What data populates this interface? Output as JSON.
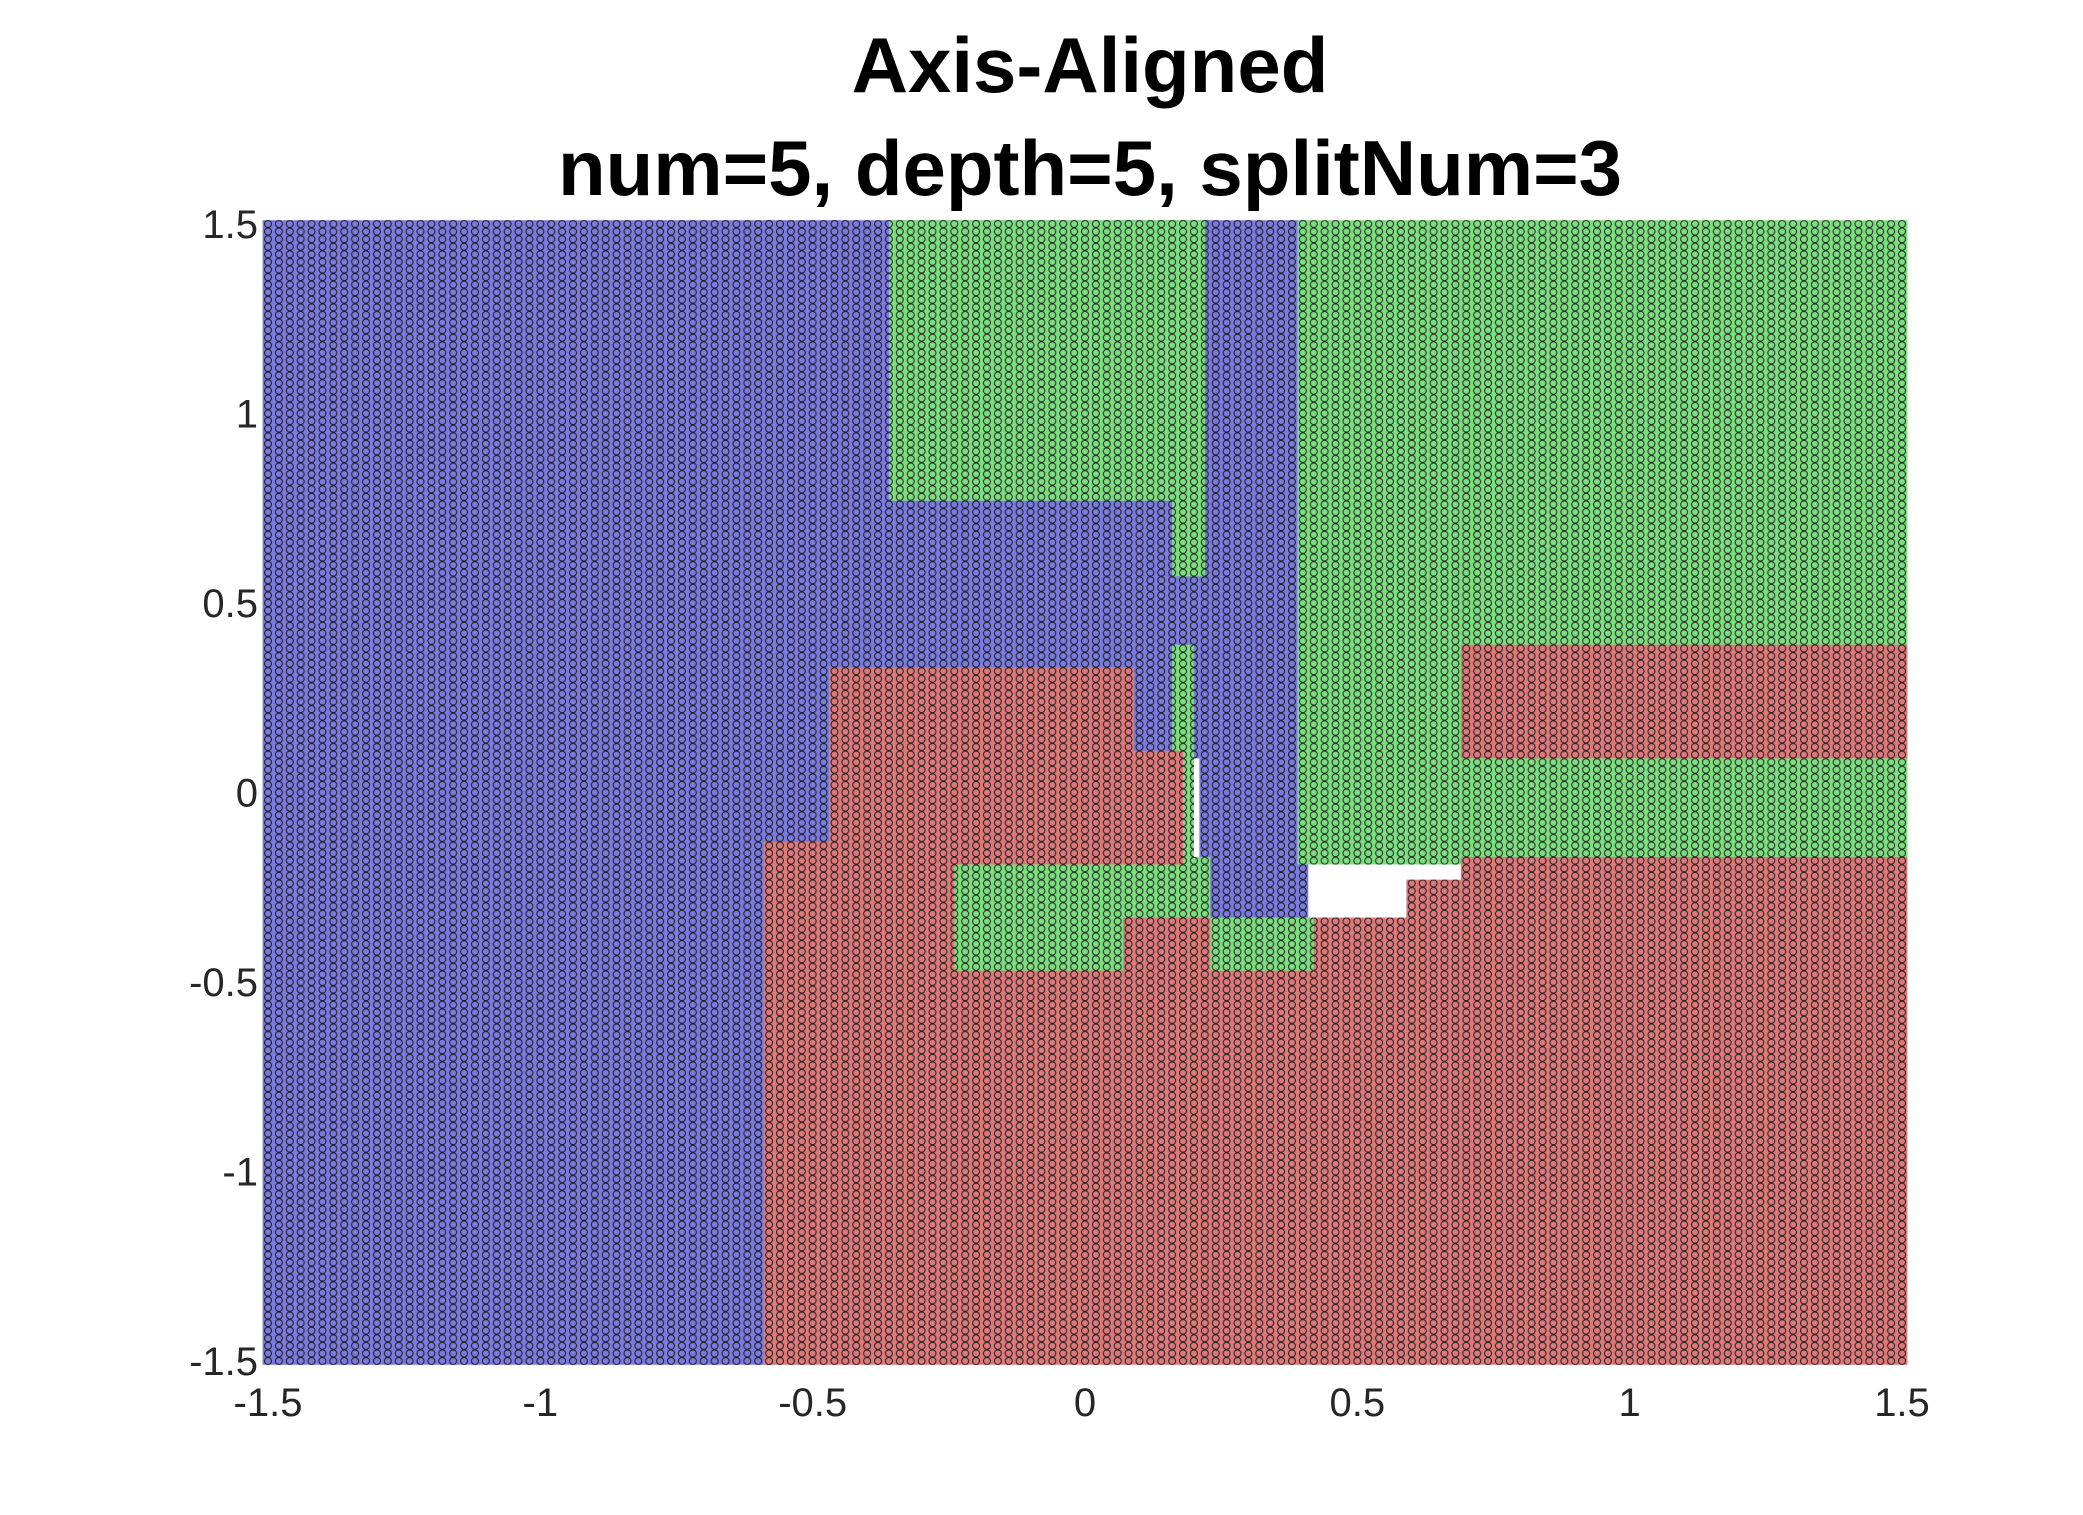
{
  "chart_data": {
    "type": "scatter",
    "title": [
      "Axis-Aligned",
      "num=5, depth=5, splitNum=3"
    ],
    "xlabel": "",
    "ylabel": "",
    "xlim": [
      -1.5,
      1.5
    ],
    "ylim": [
      -1.5,
      1.5
    ],
    "x_ticks": [
      -1.5,
      -1,
      -0.5,
      0,
      0.5,
      1,
      1.5
    ],
    "y_ticks": [
      -1.5,
      -1,
      -0.5,
      0,
      0.5,
      1,
      1.5
    ],
    "x_tick_labels": [
      "-1.5",
      "-1",
      "-0.5",
      "0",
      "0.5",
      "1",
      "1.5"
    ],
    "y_tick_labels": [
      "-1.5",
      "-1",
      "-0.5",
      "0",
      "0.5",
      "1",
      "1.5"
    ],
    "grid": false,
    "legend": "none",
    "point_grid": {
      "x_start": -1.5,
      "x_end": 1.5,
      "y_start": -1.5,
      "y_end": 1.5,
      "step": 0.02
    },
    "marker_edge_color": "#000000",
    "class_colors": {
      "blue": "#7b7bd9",
      "green": "#7fdc82",
      "red": "#d97b7b"
    },
    "series": [
      {
        "class": "blue",
        "color": "#7b7bd9",
        "regions": [
          {
            "x": [
              -1.5,
              -0.58
            ],
            "y": [
              -1.5,
              1.5
            ]
          },
          {
            "x": [
              -0.58,
              -0.46
            ],
            "y": [
              -0.14,
              1.5
            ]
          },
          {
            "x": [
              -0.46,
              0.08
            ],
            "y": [
              0.32,
              1.5
            ]
          },
          {
            "x": [
              0.08,
              0.22
            ],
            "y": [
              0.1,
              1.5
            ]
          },
          {
            "x": [
              0.22,
              0.4
            ],
            "y": [
              -0.34,
              1.5
            ]
          }
        ]
      },
      {
        "class": "green",
        "color": "#7fdc82",
        "regions": [
          {
            "x": [
              -0.35,
              0.17
            ],
            "y": [
              0.78,
              1.5
            ]
          },
          {
            "x": [
              0.17,
              0.21
            ],
            "y": [
              0.58,
              1.5
            ]
          },
          {
            "x": [
              0.4,
              1.5
            ],
            "y": [
              -0.18,
              1.5
            ]
          },
          {
            "x": [
              -0.25,
              0.08
            ],
            "y": [
              -0.48,
              -0.18
            ]
          },
          {
            "x": [
              0.08,
              0.22
            ],
            "y": [
              -0.34,
              -0.18
            ]
          },
          {
            "x": [
              0.17,
              0.19
            ],
            "y": [
              -0.18,
              0.38
            ]
          },
          {
            "x": [
              0.23,
              0.43
            ],
            "y": [
              -0.48,
              -0.34
            ]
          }
        ]
      },
      {
        "class": "red",
        "color": "#d97b7b",
        "regions": [
          {
            "x": [
              -0.58,
              1.5
            ],
            "y": [
              -1.5,
              -0.48
            ]
          },
          {
            "x": [
              -0.58,
              -0.25
            ],
            "y": [
              -0.48,
              -0.14
            ]
          },
          {
            "x": [
              -0.46,
              -0.25
            ],
            "y": [
              -0.14,
              0.32
            ]
          },
          {
            "x": [
              -0.25,
              0.08
            ],
            "y": [
              -0.18,
              0.32
            ]
          },
          {
            "x": [
              0.08,
              0.17
            ],
            "y": [
              -0.18,
              0.1
            ]
          },
          {
            "x": [
              0.08,
              0.22
            ],
            "y": [
              -0.48,
              -0.34
            ]
          },
          {
            "x": [
              0.43,
              1.5
            ],
            "y": [
              -0.48,
              -0.34
            ]
          },
          {
            "x": [
              0.6,
              1.5
            ],
            "y": [
              -0.34,
              -0.24
            ]
          },
          {
            "x": [
              0.7,
              1.5
            ],
            "y": [
              -0.24,
              -0.18
            ]
          },
          {
            "x": [
              0.7,
              1.5
            ],
            "y": [
              0.1,
              0.38
            ]
          }
        ]
      }
    ]
  }
}
